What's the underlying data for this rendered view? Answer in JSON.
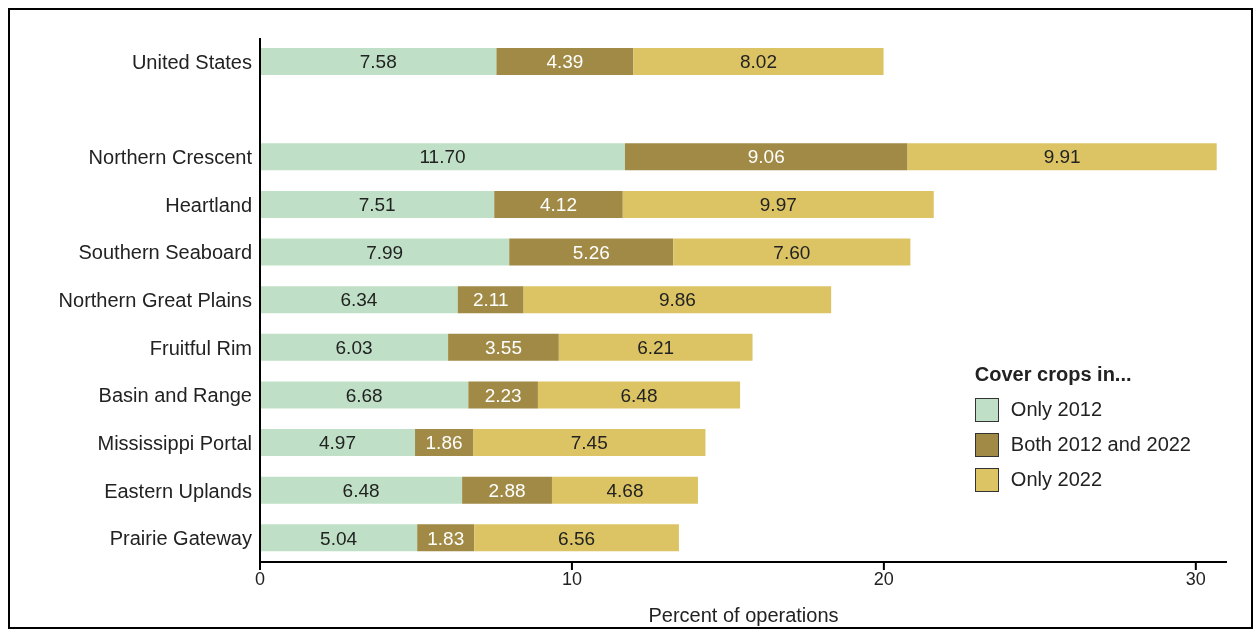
{
  "chart_data": {
    "type": "bar",
    "orientation": "horizontal",
    "stacked": true,
    "categories": [
      "United States",
      null,
      "Northern Crescent",
      "Heartland",
      "Southern Seaboard",
      "Northern Great Plains",
      "Fruitful Rim",
      "Basin and Range",
      "Mississippi Portal",
      "Eastern Uplands",
      "Prairie Gateway"
    ],
    "series": [
      {
        "name": "Only 2012",
        "color": "#bfe0c6",
        "values": [
          7.58,
          null,
          11.7,
          7.51,
          7.99,
          6.34,
          6.03,
          6.68,
          4.97,
          6.48,
          5.04
        ],
        "value_labels": [
          "7.58",
          null,
          "11.70",
          "7.51",
          "7.99",
          "6.34",
          "6.03",
          "6.68",
          "4.97",
          "6.48",
          "5.04"
        ]
      },
      {
        "name": "Both 2012 and 2022",
        "color": "#a08a45",
        "values": [
          4.39,
          null,
          9.06,
          4.12,
          5.26,
          2.11,
          3.55,
          2.23,
          1.86,
          2.88,
          1.83
        ],
        "value_labels": [
          "4.39",
          null,
          "9.06",
          "4.12",
          "5.26",
          "2.11",
          "3.55",
          "2.23",
          "1.86",
          "2.88",
          "1.83"
        ]
      },
      {
        "name": "Only 2022",
        "color": "#dcc465",
        "values": [
          8.02,
          null,
          9.91,
          9.97,
          7.6,
          9.86,
          6.21,
          6.48,
          7.45,
          4.68,
          6.56
        ],
        "value_labels": [
          "8.02",
          null,
          "9.91",
          "9.97",
          "7.60",
          "9.86",
          "6.21",
          "6.48",
          "7.45",
          "4.68",
          "6.56"
        ]
      }
    ],
    "xlim": [
      0,
      31
    ],
    "xticks": [
      0,
      10,
      20,
      30
    ],
    "xlabel": "Percent of operations",
    "legend": "bottom right",
    "legend_title": "Cover crops in...",
    "grid": false
  }
}
